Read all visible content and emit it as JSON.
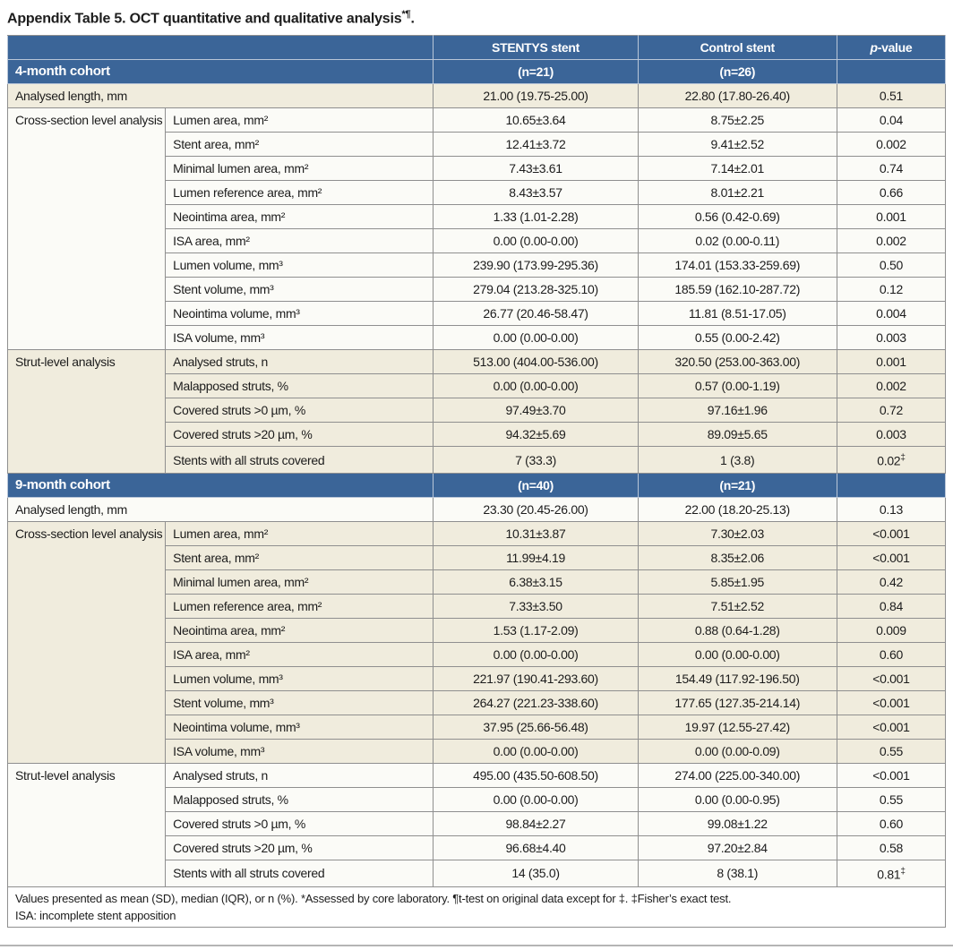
{
  "title": {
    "text": "Appendix Table 5. OCT quantitative and qualitative analysis",
    "superscript": "*¶",
    "period": "."
  },
  "colors": {
    "header_blue": "#3b6598",
    "row_cream": "#f0ecdd",
    "row_white": "#fbfbf7",
    "grid_gray": "#8f8f8f"
  },
  "columns": {
    "stentys": "STENTYS stent",
    "control": "Control stent",
    "p_italic": "p",
    "p_rest": "-value"
  },
  "cohorts": [
    {
      "name": "4-month cohort",
      "n_stentys": "(n=21)",
      "n_control": "(n=26)",
      "analysed_length": {
        "label": "Analysed length, mm",
        "stentys": "21.00 (19.75-25.00)",
        "control": "22.80 (17.80-26.40)",
        "p": "0.51"
      },
      "sections": [
        {
          "group": "Cross-section level analysis",
          "rows": [
            {
              "label": "Lumen area, mm²",
              "stentys": "10.65±3.64",
              "control": "8.75±2.25",
              "p": "0.04"
            },
            {
              "label": "Stent area, mm²",
              "stentys": "12.41±3.72",
              "control": "9.41±2.52",
              "p": "0.002"
            },
            {
              "label": "Minimal lumen area, mm²",
              "stentys": "7.43±3.61",
              "control": "7.14±2.01",
              "p": "0.74"
            },
            {
              "label": "Lumen reference area, mm²",
              "stentys": "8.43±3.57",
              "control": "8.01±2.21",
              "p": "0.66"
            },
            {
              "label": "Neointima area, mm²",
              "stentys": "1.33 (1.01-2.28)",
              "control": "0.56 (0.42-0.69)",
              "p": "0.001"
            },
            {
              "label": "ISA area, mm²",
              "stentys": "0.00 (0.00-0.00)",
              "control": "0.02 (0.00-0.11)",
              "p": "0.002"
            },
            {
              "label": "Lumen volume, mm³",
              "stentys": "239.90 (173.99-295.36)",
              "control": "174.01 (153.33-259.69)",
              "p": "0.50"
            },
            {
              "label": "Stent volume, mm³",
              "stentys": "279.04 (213.28-325.10)",
              "control": "185.59 (162.10-287.72)",
              "p": "0.12"
            },
            {
              "label": "Neointima volume, mm³",
              "stentys": "26.77 (20.46-58.47)",
              "control": "11.81 (8.51-17.05)",
              "p": "0.004"
            },
            {
              "label": "ISA volume, mm³",
              "stentys": "0.00 (0.00-0.00)",
              "control": "0.55 (0.00-2.42)",
              "p": "0.003"
            }
          ]
        },
        {
          "group": "Strut-level analysis",
          "rows": [
            {
              "label": "Analysed struts, n",
              "stentys": "513.00 (404.00-536.00)",
              "control": "320.50 (253.00-363.00)",
              "p": "0.001"
            },
            {
              "label": "Malapposed struts, %",
              "stentys": "0.00 (0.00-0.00)",
              "control": "0.57 (0.00-1.19)",
              "p": "0.002"
            },
            {
              "label": "Covered struts >0 µm, %",
              "stentys": "97.49±3.70",
              "control": "97.16±1.96",
              "p": "0.72"
            },
            {
              "label": "Covered struts >20 µm, %",
              "stentys": "94.32±5.69",
              "control": "89.09±5.65",
              "p": "0.003"
            },
            {
              "label": "Stents with all struts covered",
              "stentys": "7 (33.3)",
              "control": "1 (3.8)",
              "p": "0.02‡"
            }
          ]
        }
      ]
    },
    {
      "name": "9-month cohort",
      "n_stentys": "(n=40)",
      "n_control": "(n=21)",
      "analysed_length": {
        "label": "Analysed length, mm",
        "stentys": "23.30 (20.45-26.00)",
        "control": "22.00 (18.20-25.13)",
        "p": "0.13"
      },
      "sections": [
        {
          "group": "Cross-section level analysis",
          "rows": [
            {
              "label": "Lumen area, mm²",
              "stentys": "10.31±3.87",
              "control": "7.30±2.03",
              "p": "<0.001"
            },
            {
              "label": "Stent area, mm²",
              "stentys": "11.99±4.19",
              "control": "8.35±2.06",
              "p": "<0.001"
            },
            {
              "label": "Minimal lumen area, mm²",
              "stentys": "6.38±3.15",
              "control": "5.85±1.95",
              "p": "0.42"
            },
            {
              "label": "Lumen reference area, mm²",
              "stentys": "7.33±3.50",
              "control": "7.51±2.52",
              "p": "0.84"
            },
            {
              "label": "Neointima area, mm²",
              "stentys": "1.53 (1.17-2.09)",
              "control": "0.88 (0.64-1.28)",
              "p": "0.009"
            },
            {
              "label": "ISA area, mm²",
              "stentys": "0.00 (0.00-0.00)",
              "control": "0.00 (0.00-0.00)",
              "p": "0.60"
            },
            {
              "label": "Lumen volume, mm³",
              "stentys": "221.97 (190.41-293.60)",
              "control": "154.49 (117.92-196.50)",
              "p": "<0.001"
            },
            {
              "label": "Stent volume, mm³",
              "stentys": "264.27 (221.23-338.60)",
              "control": "177.65 (127.35-214.14)",
              "p": "<0.001"
            },
            {
              "label": "Neointima volume, mm³",
              "stentys": "37.95 (25.66-56.48)",
              "control": "19.97 (12.55-27.42)",
              "p": "<0.001"
            },
            {
              "label": "ISA volume, mm³",
              "stentys": "0.00 (0.00-0.00)",
              "control": "0.00 (0.00-0.09)",
              "p": "0.55"
            }
          ]
        },
        {
          "group": "Strut-level analysis",
          "rows": [
            {
              "label": "Analysed struts, n",
              "stentys": "495.00 (435.50-608.50)",
              "control": "274.00 (225.00-340.00)",
              "p": "<0.001"
            },
            {
              "label": "Malapposed struts, %",
              "stentys": "0.00 (0.00-0.00)",
              "control": "0.00 (0.00-0.95)",
              "p": "0.55"
            },
            {
              "label": "Covered struts >0 µm, %",
              "stentys": "98.84±2.27",
              "control": "99.08±1.22",
              "p": "0.60"
            },
            {
              "label": "Covered struts >20 µm, %",
              "stentys": "96.68±4.40",
              "control": "97.20±2.84",
              "p": "0.58"
            },
            {
              "label": "Stents with all struts covered",
              "stentys": "14 (35.0)",
              "control": "8 (38.1)",
              "p": "0.81‡"
            }
          ]
        }
      ]
    }
  ],
  "footnotes": {
    "line1": "Values presented as mean (SD), median (IQR), or n (%). *Assessed by core laboratory. ¶t-test on original data except for ‡. ‡Fisher’s exact test.",
    "line2": "ISA: incomplete stent apposition"
  }
}
